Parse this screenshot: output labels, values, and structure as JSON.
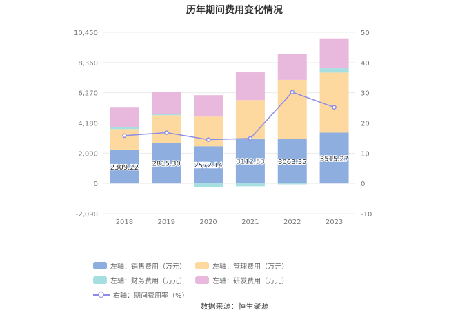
{
  "chart_data": {
    "type": "bar",
    "title": "历年期间费用变化情况",
    "categories": [
      "2018",
      "2019",
      "2020",
      "2021",
      "2022",
      "2023"
    ],
    "left_axis": {
      "ylim": [
        -2090,
        10450
      ],
      "ticks": [
        "10,450",
        "8,360",
        "6,270",
        "4,180",
        "2,090",
        "0",
        "-2,090"
      ],
      "tick_values": [
        10450,
        8360,
        6270,
        4180,
        2090,
        0,
        -2090
      ]
    },
    "right_axis": {
      "ylim": [
        -10,
        50
      ],
      "ticks": [
        "50",
        "40",
        "30",
        "20",
        "10",
        "0",
        "-10"
      ],
      "tick_values": [
        50,
        40,
        30,
        20,
        10,
        0,
        -10
      ]
    },
    "series": [
      {
        "name": "左轴：销售费用（万元）",
        "kind": "bar",
        "axis": "left",
        "color": "#8eaedf",
        "values": [
          2309.22,
          2815.3,
          2572.14,
          3112.53,
          3063.35,
          3515.27
        ],
        "labels": [
          "2309.22",
          "2815.30",
          "2572.14",
          "3112.53",
          "3063.35",
          "3515.27"
        ]
      },
      {
        "name": "左轴：管理费用（万元）",
        "kind": "bar",
        "axis": "left",
        "color": "#fdd9a0",
        "values": [
          1450,
          1900,
          2050,
          2650,
          4100,
          4150
        ]
      },
      {
        "name": "左轴：财务费用（万元）",
        "kind": "bar",
        "axis": "left",
        "color": "#a6dfe0",
        "values": [
          150,
          100,
          -280,
          -200,
          -60,
          300
        ]
      },
      {
        "name": "左轴：研发费用（万元）",
        "kind": "bar",
        "axis": "left",
        "color": "#e8b9dd",
        "values": [
          1380,
          1500,
          1480,
          1920,
          1770,
          2070
        ]
      },
      {
        "name": "右轴：期间费用率（%）",
        "kind": "line",
        "axis": "right",
        "color": "#8c8ce8",
        "values": [
          15.8,
          16.8,
          14.5,
          14.9,
          30.2,
          25.2
        ]
      }
    ],
    "grid": true,
    "legend_position": "bottom"
  },
  "source": "数据来源：恒生聚源"
}
